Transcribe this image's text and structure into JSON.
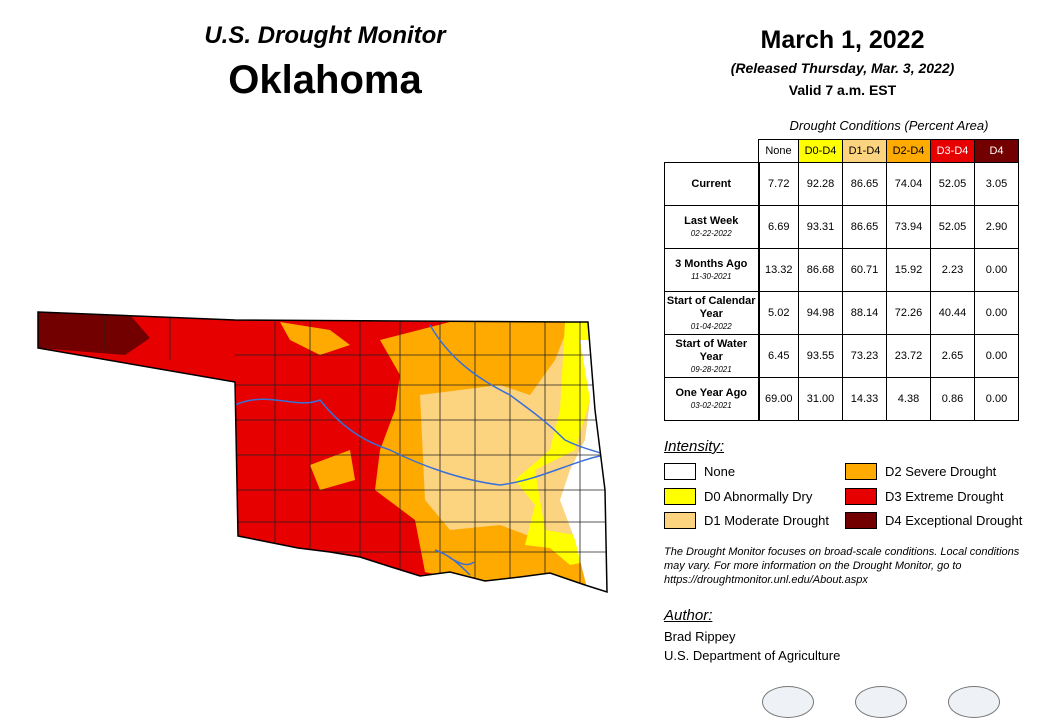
{
  "header": {
    "subtitle": "U.S. Drought Monitor",
    "state": "Oklahoma",
    "date": "March 1, 2022",
    "released": "(Released Thursday, Mar. 3, 2022)",
    "valid": "Valid 7 a.m. EST"
  },
  "table": {
    "caption": "Drought Conditions (Percent Area)",
    "columns": [
      {
        "label": "None",
        "color": "#ffffff",
        "text_color": "#000000"
      },
      {
        "label": "D0-D4",
        "color": "#ffff00",
        "text_color": "#000000"
      },
      {
        "label": "D1-D4",
        "color": "#fcd37f",
        "text_color": "#000000"
      },
      {
        "label": "D2-D4",
        "color": "#ffaa00",
        "text_color": "#000000"
      },
      {
        "label": "D3-D4",
        "color": "#e60000",
        "text_color": "#ffffff"
      },
      {
        "label": "D4",
        "color": "#730000",
        "text_color": "#ffffff"
      }
    ],
    "rows": [
      {
        "label": "Current",
        "date": "",
        "values": [
          "7.72",
          "92.28",
          "86.65",
          "74.04",
          "52.05",
          "3.05"
        ]
      },
      {
        "label": "Last Week",
        "date": "02-22-2022",
        "values": [
          "6.69",
          "93.31",
          "86.65",
          "73.94",
          "52.05",
          "2.90"
        ]
      },
      {
        "label": "3 Months Ago",
        "date": "11-30-2021",
        "values": [
          "13.32",
          "86.68",
          "60.71",
          "15.92",
          "2.23",
          "0.00"
        ]
      },
      {
        "label": "Start of Calendar Year",
        "date": "01-04-2022",
        "values": [
          "5.02",
          "94.98",
          "88.14",
          "72.26",
          "40.44",
          "0.00"
        ]
      },
      {
        "label": "Start of Water Year",
        "date": "09-28-2021",
        "values": [
          "6.45",
          "93.55",
          "73.23",
          "23.72",
          "2.65",
          "0.00"
        ]
      },
      {
        "label": "One Year Ago",
        "date": "03-02-2021",
        "values": [
          "69.00",
          "31.00",
          "14.33",
          "4.38",
          "0.86",
          "0.00"
        ]
      }
    ]
  },
  "legend": {
    "title": "Intensity:",
    "items": [
      {
        "label": "None",
        "color": "#ffffff"
      },
      {
        "label": "D0 Abnormally Dry",
        "color": "#ffff00"
      },
      {
        "label": "D1 Moderate Drought",
        "color": "#fcd37f"
      },
      {
        "label": "D2 Severe Drought",
        "color": "#ffaa00"
      },
      {
        "label": "D3 Extreme Drought",
        "color": "#e60000"
      },
      {
        "label": "D4 Exceptional Drought",
        "color": "#730000"
      }
    ]
  },
  "note": "The Drought Monitor focuses on broad-scale conditions. Local conditions may vary. For more information on the Drought Monitor, go to https://droughtmonitor.unl.edu/About.aspx",
  "author": {
    "heading": "Author:",
    "name": "Brad Rippey",
    "org": "U.S. Department of Agriculture"
  },
  "map": {
    "river_color": "#3a6fd8",
    "border_color": "#000000",
    "county_line_color": "#222222"
  }
}
